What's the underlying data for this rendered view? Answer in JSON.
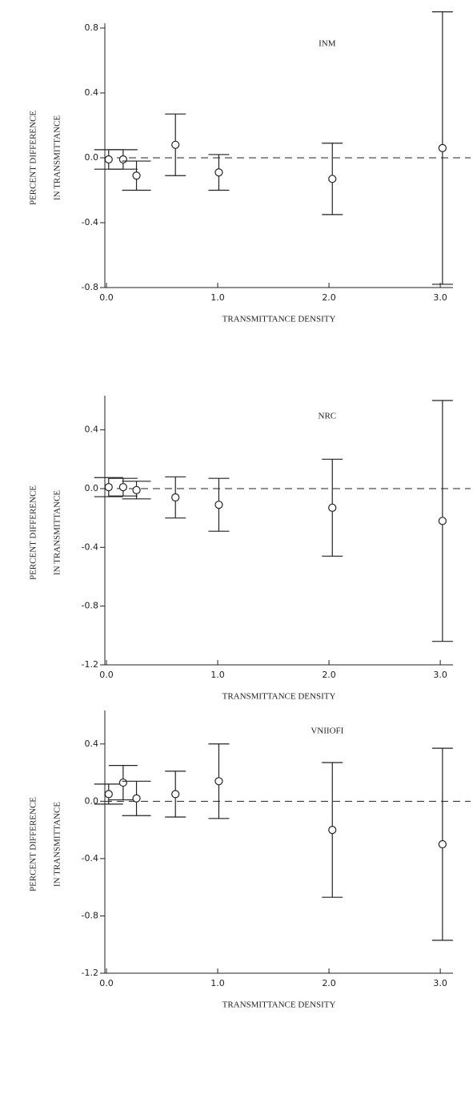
{
  "chart_data": [
    {
      "type": "scatter",
      "title": "INM",
      "xlabel": "TRANSMITTANCE DENSITY",
      "ylabel": [
        "PERCENT DIFFERENCE",
        "IN TRANSMITTANCE"
      ],
      "x": [
        0.02,
        0.15,
        0.27,
        0.62,
        1.01,
        2.03,
        3.02
      ],
      "values": [
        -0.01,
        -0.01,
        -0.11,
        0.08,
        -0.09,
        -0.13,
        0.06
      ],
      "errors": [
        0.06,
        0.06,
        0.09,
        0.19,
        0.11,
        0.22,
        0.84
      ],
      "xlim": [
        0,
        3.1
      ],
      "xticks": [
        {
          "value": 0,
          "label": "0.0"
        },
        {
          "value": 1,
          "label": "1.0"
        },
        {
          "value": 2,
          "label": "2.0"
        },
        {
          "value": 3,
          "label": "3.0"
        }
      ],
      "ylim": [
        -0.8,
        0.8
      ],
      "yticks": [
        0.8,
        0.4,
        {
          "value": 0,
          "label": "0.0"
        },
        -0.4,
        -0.8
      ],
      "color": "#222222"
    },
    {
      "type": "scatter",
      "title": "NRC",
      "xlabel": "TRANSMITTANCE DENSITY",
      "ylabel": [
        "PERCENT DIFFERENCE",
        "IN TRANSMITTANCE"
      ],
      "x": [
        0.02,
        0.15,
        0.27,
        0.62,
        1.01,
        2.03,
        3.02
      ],
      "values": [
        0.01,
        0.01,
        -0.01,
        -0.06,
        -0.11,
        -0.13,
        -0.22
      ],
      "errors": [
        0.065,
        0.06,
        0.06,
        0.14,
        0.18,
        0.33,
        0.82
      ],
      "xlim": [
        0,
        3.1
      ],
      "xticks": [
        {
          "value": 0,
          "label": "0.0"
        },
        {
          "value": 1,
          "label": "1.0"
        },
        {
          "value": 2,
          "label": "2.0"
        },
        {
          "value": 3,
          "label": "3.0"
        }
      ],
      "ylim": [
        -1.2,
        0.6
      ],
      "yticks": [
        0.4,
        {
          "value": 0,
          "label": "0.0"
        },
        -0.4,
        -0.8,
        -1.2
      ],
      "color": "#222222"
    },
    {
      "type": "scatter",
      "title": "VNIIOFI",
      "xlabel": "TRANSMITTANCE DENSITY",
      "ylabel": [
        "PERCENT DIFFERENCE",
        "IN TRANSMITTANCE"
      ],
      "x": [
        0.02,
        0.15,
        0.27,
        0.62,
        1.01,
        2.03,
        3.02
      ],
      "values": [
        0.05,
        0.13,
        0.02,
        0.05,
        0.14,
        -0.2,
        -0.3
      ],
      "errors": [
        0.07,
        0.12,
        0.12,
        0.16,
        0.26,
        0.47,
        0.67
      ],
      "xlim": [
        0,
        3.1
      ],
      "xticks": [
        {
          "value": 0,
          "label": "0.0"
        },
        {
          "value": 1,
          "label": "1.0"
        },
        {
          "value": 2,
          "label": "2.0"
        },
        {
          "value": 3,
          "label": "3.0"
        }
      ],
      "ylim": [
        -1.2,
        0.6
      ],
      "yticks": [
        0.4,
        {
          "value": 0,
          "label": "0.0"
        },
        -0.4,
        -0.8,
        -1.2
      ],
      "color": "#222222"
    }
  ]
}
